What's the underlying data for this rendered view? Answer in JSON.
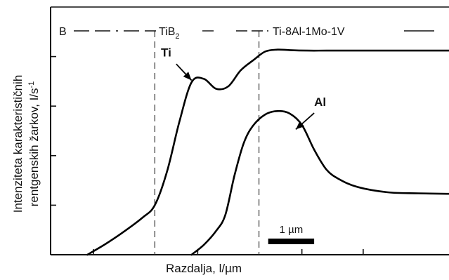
{
  "chart_data": {
    "type": "line",
    "xlabel": "Razdalja, l/µm",
    "ylabel_line1": "Intenziteta karakterističnih",
    "ylabel_line2": "rentgenskih žarkov, I/s",
    "ylabel_sup": "-1",
    "x_range": [
      0,
      6.5
    ],
    "y_range": [
      0,
      5
    ],
    "x_ticks": [
      0.7,
      2.4,
      4.1,
      5.1
    ],
    "y_ticks": [
      1,
      2,
      3,
      4
    ],
    "grid": false,
    "regions": {
      "B": "B",
      "TiB2_base": "TiB",
      "TiB2_sub": "2",
      "alloy": "Ti-8Al-1Mo-1V"
    },
    "boundaries": [
      1.7,
      3.4
    ],
    "scale_bar": {
      "label": "1 µm",
      "from": 3.55,
      "to": 4.3,
      "y": 0.27
    },
    "series": [
      {
        "name": "Ti",
        "x": [
          0.6,
          0.9,
          1.2,
          1.5,
          1.7,
          1.9,
          2.1,
          2.3,
          2.5,
          2.7,
          2.9,
          3.1,
          3.3,
          3.5,
          3.7,
          3.9,
          4.2,
          4.5,
          5.0,
          5.5,
          6.0,
          6.5
        ],
        "y": [
          0.0,
          0.22,
          0.47,
          0.75,
          1.0,
          1.68,
          2.68,
          3.48,
          3.55,
          3.35,
          3.4,
          3.72,
          3.92,
          4.1,
          4.14,
          4.13,
          4.12,
          4.12,
          4.12,
          4.12,
          4.12,
          4.12
        ]
      },
      {
        "name": "Al",
        "x": [
          2.3,
          2.5,
          2.7,
          2.85,
          3.0,
          3.15,
          3.3,
          3.5,
          3.7,
          3.9,
          4.1,
          4.3,
          4.5,
          4.7,
          5.0,
          5.5,
          6.0,
          6.5
        ],
        "y": [
          0.0,
          0.2,
          0.48,
          0.8,
          1.6,
          2.25,
          2.6,
          2.83,
          2.9,
          2.85,
          2.62,
          2.12,
          1.72,
          1.53,
          1.37,
          1.26,
          1.24,
          1.23
        ]
      }
    ],
    "annotations": [
      {
        "label": "Ti",
        "series": "Ti",
        "text_pos": [
          1.8,
          4.0
        ],
        "arrow_from": [
          2.05,
          3.85
        ],
        "arrow_to": [
          2.3,
          3.52
        ]
      },
      {
        "label": "Al",
        "series": "Al",
        "text_pos": [
          4.3,
          3.0
        ],
        "arrow_from": [
          4.3,
          2.86
        ],
        "arrow_to": [
          4.0,
          2.53
        ]
      }
    ]
  }
}
